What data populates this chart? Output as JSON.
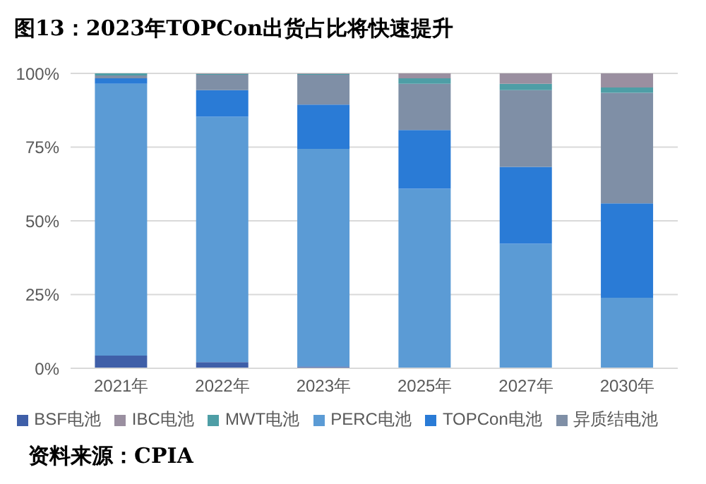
{
  "chart_data": {
    "type": "bar",
    "stacked": true,
    "title": "图13：2023年TOPCon出货占比将快速提升",
    "categories": [
      "2021年",
      "2022年",
      "2023年",
      "2025年",
      "2027年",
      "2030年"
    ],
    "series": [
      {
        "name": "BSF电池",
        "color": "#3f5fa8",
        "values": [
          4.3,
          2.1,
          0.6,
          0,
          0,
          0
        ]
      },
      {
        "name": "PERC电池",
        "color": "#5b9bd5",
        "values": [
          92.2,
          83.2,
          73.8,
          60.9,
          42.2,
          23.9
        ]
      },
      {
        "name": "TOPCon电池",
        "color": "#2a7bd6",
        "values": [
          1.8,
          9.0,
          15.0,
          19.9,
          26.1,
          32.0
        ]
      },
      {
        "name": "异质结电池",
        "color": "#7f8fa6",
        "values": [
          1.0,
          5.2,
          10.1,
          15.7,
          26.0,
          37.5
        ]
      },
      {
        "name": "MWT电池",
        "color": "#4e9ea6",
        "values": [
          0.7,
          0.3,
          0.3,
          1.8,
          2.2,
          1.8
        ]
      },
      {
        "name": "IBC电池",
        "color": "#9a8fa0",
        "values": [
          0,
          0.2,
          0.2,
          1.7,
          3.5,
          4.8
        ]
      }
    ],
    "ylim": [
      0,
      100
    ],
    "yticks": [
      {
        "value": 0,
        "label": "0%"
      },
      {
        "value": 25,
        "label": "25%"
      },
      {
        "value": 50,
        "label": "50%"
      },
      {
        "value": 75,
        "label": "75%"
      },
      {
        "value": 100,
        "label": "100%"
      }
    ],
    "grid": "y",
    "legend": "bottom",
    "annotations": [
      "资料来源：CPIA"
    ]
  }
}
